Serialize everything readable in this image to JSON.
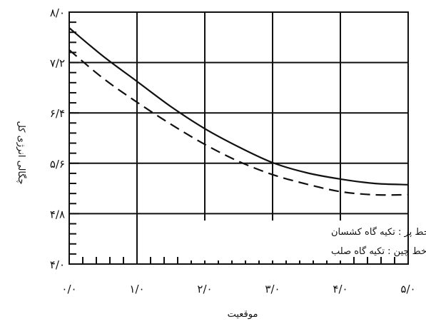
{
  "chart_data": {
    "type": "line",
    "xlabel": "موقعیت",
    "ylabel": "چگالی انرژی کل",
    "xlim": [
      0,
      5
    ],
    "ylim": [
      4,
      8
    ],
    "x_ticks": [
      0,
      1,
      2,
      3,
      4,
      5
    ],
    "x_tick_labels": [
      "۰/۰",
      "۱/۰",
      "۲/۰",
      "۳/۰",
      "۴/۰",
      "۵/۰"
    ],
    "y_ticks": [
      4,
      4.8,
      5.6,
      6.4,
      7.2,
      8
    ],
    "y_tick_labels": [
      "۴/۰",
      "۴/۸",
      "۵/۶",
      "۶/۴",
      "۷/۲",
      "۸/۰"
    ],
    "grid": true,
    "minor_ticks_per_major": 5,
    "legend_position": "bottom-center",
    "series": [
      {
        "label": "خط پر : تکیه گاه کشسان",
        "style": "solid",
        "color": "#111111",
        "x": [
          0,
          0.5,
          1,
          1.5,
          2,
          2.5,
          3,
          3.5,
          4,
          4.5,
          5
        ],
        "y": [
          7.75,
          7.3,
          6.9,
          6.5,
          6.15,
          5.86,
          5.61,
          5.45,
          5.35,
          5.28,
          5.26
        ]
      },
      {
        "label": "خط چین : تکیه گاه صلب",
        "style": "dashed",
        "color": "#111111",
        "x": [
          0,
          0.5,
          1,
          1.5,
          2,
          2.5,
          3,
          3.5,
          4,
          4.5,
          5
        ],
        "y": [
          7.4,
          6.95,
          6.57,
          6.22,
          5.9,
          5.63,
          5.42,
          5.27,
          5.15,
          5.1,
          5.1
        ]
      }
    ]
  }
}
